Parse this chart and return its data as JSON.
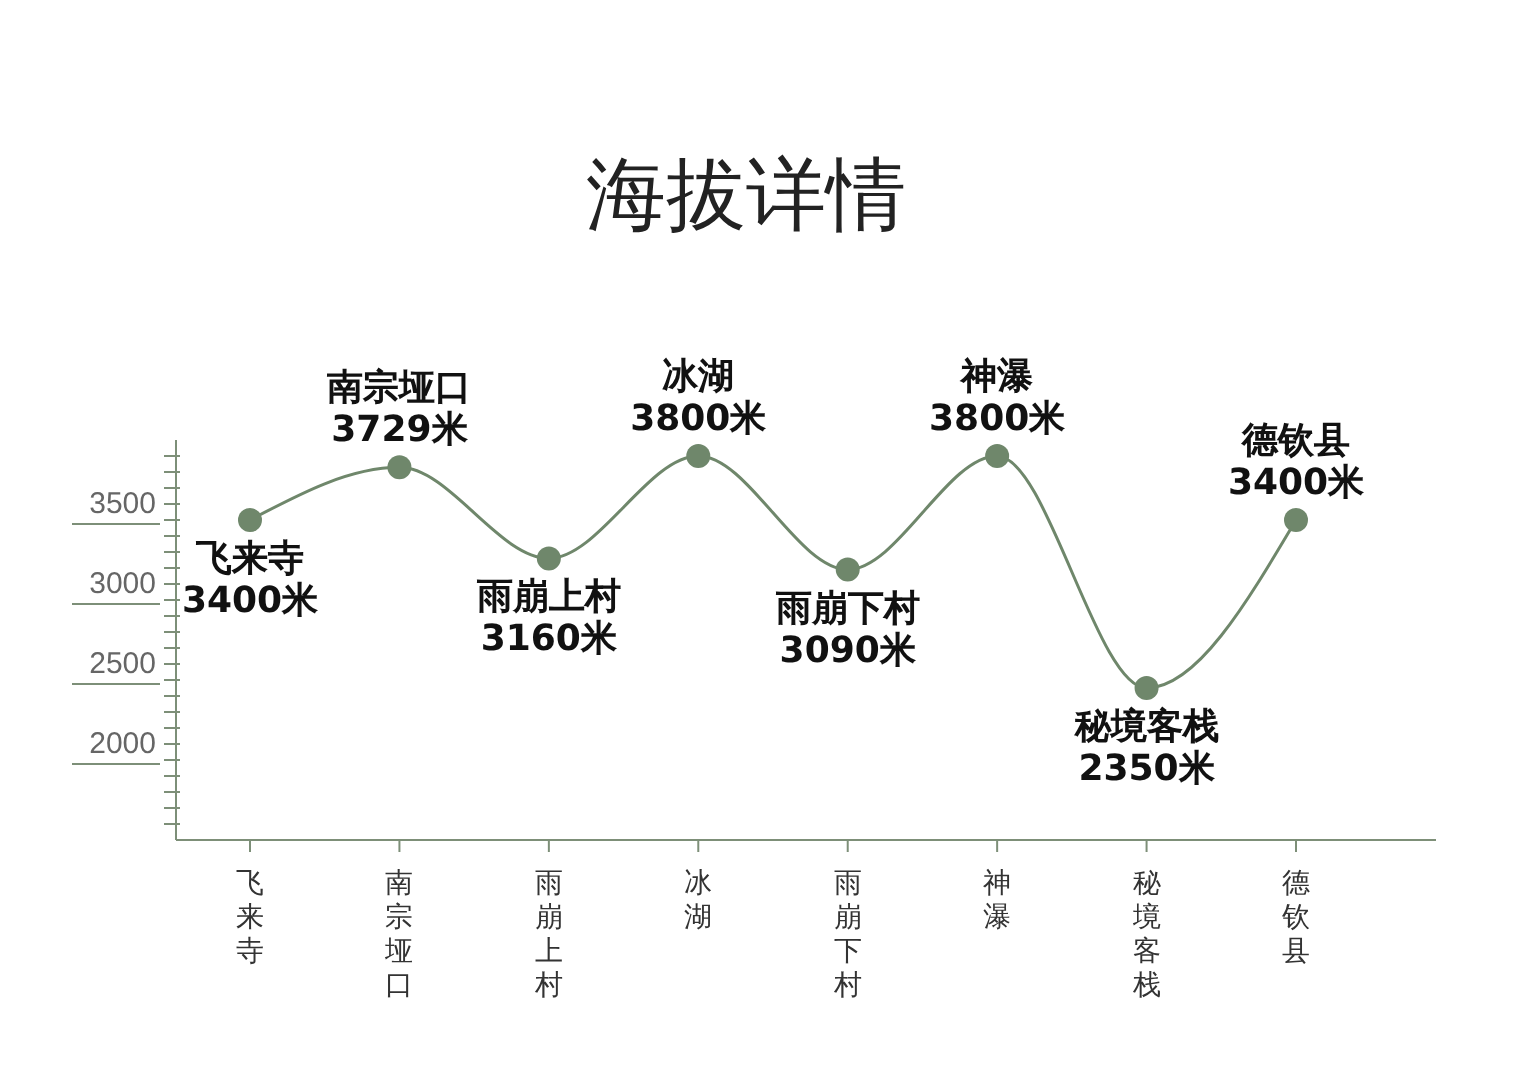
{
  "chart_data": {
    "type": "line",
    "title": "海拔详情",
    "categories": [
      "飞来寺",
      "南宗垭口",
      "雨崩上村",
      "冰湖",
      "雨崩下村",
      "神瀑",
      "秘境客栈",
      "德钦县"
    ],
    "series": [
      {
        "color": "#6f876b",
        "values": [
          3400,
          3729,
          3160,
          3800,
          3090,
          3800,
          2350,
          3400
        ],
        "value_labels": [
          "3400米",
          "3729米",
          "3160米",
          "3800米",
          "3090米",
          "3800米",
          "2350米",
          "3400米"
        ]
      }
    ],
    "ylim": [
      1400,
      3900
    ],
    "yticks": [
      {
        "value": 1500,
        "label": null
      },
      {
        "value": 1600,
        "label": null
      },
      {
        "value": 1700,
        "label": null
      },
      {
        "value": 1800,
        "label": null
      },
      {
        "value": 1900,
        "label": null
      },
      2000,
      {
        "value": 2100,
        "label": null
      },
      {
        "value": 2200,
        "label": null
      },
      {
        "value": 2300,
        "label": null
      },
      {
        "value": 2400,
        "label": null
      },
      2500,
      {
        "value": 2600,
        "label": null
      },
      {
        "value": 2700,
        "label": null
      },
      {
        "value": 2800,
        "label": null
      },
      {
        "value": 2900,
        "label": null
      },
      3000,
      {
        "value": 3100,
        "label": null
      },
      {
        "value": 3200,
        "label": null
      },
      {
        "value": 3300,
        "label": null
      },
      {
        "value": 3400,
        "label": null
      },
      3500,
      {
        "value": 3600,
        "label": null
      },
      {
        "value": 3700,
        "label": null
      },
      {
        "value": 3800,
        "label": null
      }
    ],
    "marker": "circle",
    "line_style": "solid"
  }
}
